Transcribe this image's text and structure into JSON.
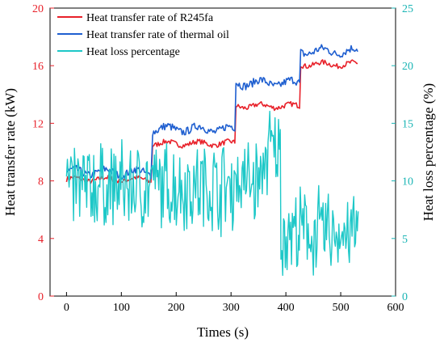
{
  "chart_data": {
    "type": "line",
    "xlabel": "Times (s)",
    "ylabel_left": "Heat transfer rate (kW)",
    "ylabel_right": "Heat loss percentage (%)",
    "xlim": [
      -30,
      600
    ],
    "ylim_left": [
      0,
      20
    ],
    "ylim_right": [
      0,
      25
    ],
    "xticks": [
      0,
      100,
      200,
      300,
      400,
      500,
      600
    ],
    "yticks_left": [
      0,
      4,
      8,
      12,
      16,
      20
    ],
    "yticks_right": [
      0,
      5,
      10,
      15,
      20,
      25
    ],
    "legend_position": "top-left",
    "colors": {
      "left_axis": "#e8212a",
      "right_axis": "#1ab5b5"
    },
    "series": [
      {
        "name": "Heat transfer rate of R245fa",
        "axis": "left",
        "color": "#e8212a",
        "segments": [
          {
            "x_start": 0,
            "x_end": 155,
            "level": 8.1
          },
          {
            "x_start": 157,
            "x_end": 307,
            "level": 10.6
          },
          {
            "x_start": 309,
            "x_end": 425,
            "level": 13.2
          },
          {
            "x_start": 427,
            "x_end": 532,
            "level": 16.1
          }
        ]
      },
      {
        "name": "Heat transfer rate of thermal oil",
        "axis": "left",
        "color": "#1f5fd0",
        "segments": [
          {
            "x_start": 0,
            "x_end": 155,
            "level": 8.6
          },
          {
            "x_start": 157,
            "x_end": 307,
            "level": 11.6
          },
          {
            "x_start": 309,
            "x_end": 425,
            "level": 14.8
          },
          {
            "x_start": 427,
            "x_end": 532,
            "level": 17.0
          }
        ]
      },
      {
        "name": "Heat loss percentage",
        "axis": "right",
        "color": "#1ec8c8",
        "segments": [
          {
            "x_start": 0,
            "x_end": 155,
            "level": 9.5
          },
          {
            "x_start": 157,
            "x_end": 307,
            "level": 9.5
          },
          {
            "x_start": 309,
            "x_end": 360,
            "level": 10.0
          },
          {
            "x_start": 361,
            "x_end": 390,
            "level": 12.5
          },
          {
            "x_start": 391,
            "x_end": 532,
            "level": 5.5
          }
        ]
      }
    ]
  }
}
